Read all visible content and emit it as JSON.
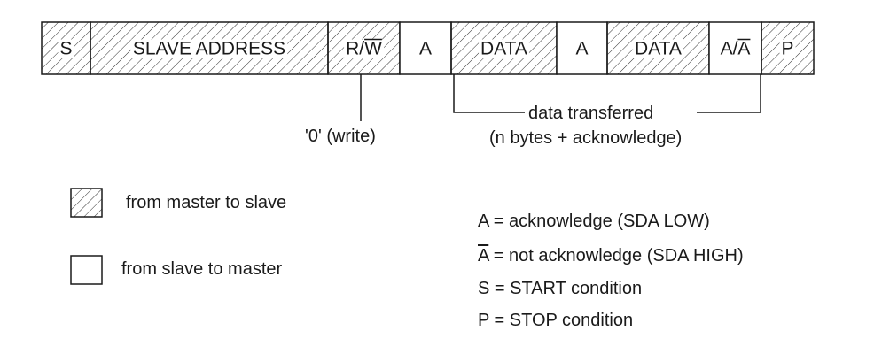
{
  "frame": {
    "cells": [
      {
        "label": "S",
        "shaded": true,
        "overline": false
      },
      {
        "label": "SLAVE ADDRESS",
        "shaded": true,
        "overline": false
      },
      {
        "label": "R/W",
        "shaded": true,
        "overline": true
      },
      {
        "label": "A",
        "shaded": false,
        "overline": false
      },
      {
        "label": "DATA",
        "shaded": true,
        "overline": false
      },
      {
        "label": "A",
        "shaded": false,
        "overline": false
      },
      {
        "label": "DATA",
        "shaded": true,
        "overline": false
      },
      {
        "label": "A/A",
        "shaded": false,
        "overline": true
      },
      {
        "label": "P",
        "shaded": true,
        "overline": false
      }
    ]
  },
  "annotations": {
    "write_bit": "'0' (write)",
    "data_transferred": "data transferred",
    "data_transferred_detail": "(n bytes + acknowledge)"
  },
  "legend": {
    "master_to_slave": "from master to slave",
    "slave_to_master": "from slave to master"
  },
  "definitions": {
    "a": "A = acknowledge (SDA LOW)",
    "a_bar_symbol": "A",
    "a_bar_text": " = not acknowledge (SDA HIGH)",
    "s": "S = START condition",
    "p": "P = STOP condition"
  }
}
